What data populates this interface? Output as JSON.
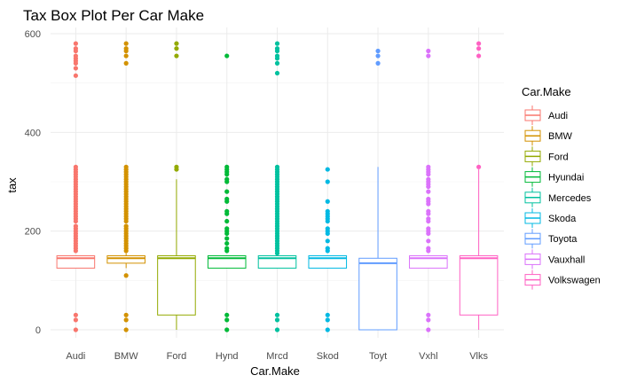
{
  "chart_data": {
    "type": "boxplot",
    "title": "Tax Box Plot Per Car Make",
    "xlabel": "Car.Make",
    "ylabel": "tax",
    "ylim": [
      -5,
      603
    ],
    "yticks": [
      0,
      200,
      400,
      600
    ],
    "grid": true,
    "legend": {
      "title": "Car.Make",
      "position": "right"
    },
    "categories": [
      {
        "tick": "Audi",
        "legend": "Audi",
        "color": "#F8766D",
        "box": {
          "min": 125,
          "q1": 125,
          "median": 145,
          "q3": 150,
          "max": 150
        },
        "outliers": [
          0,
          20,
          30,
          160,
          165,
          170,
          175,
          180,
          185,
          190,
          195,
          200,
          205,
          210,
          220,
          225,
          230,
          235,
          240,
          245,
          250,
          255,
          260,
          265,
          270,
          275,
          280,
          285,
          290,
          295,
          300,
          305,
          310,
          315,
          320,
          325,
          330,
          515,
          530,
          540,
          545,
          550,
          555,
          565,
          570,
          580
        ]
      },
      {
        "tick": "BMW",
        "legend": "BMW",
        "color": "#D39200",
        "box": {
          "min": 125,
          "q1": 135,
          "median": 145,
          "q3": 150,
          "max": 155
        },
        "outliers": [
          0,
          20,
          30,
          110,
          160,
          165,
          170,
          175,
          180,
          185,
          190,
          195,
          200,
          205,
          210,
          220,
          225,
          230,
          235,
          240,
          245,
          250,
          255,
          260,
          265,
          270,
          275,
          280,
          285,
          290,
          295,
          300,
          305,
          310,
          315,
          320,
          325,
          330,
          540,
          555,
          565,
          570,
          580
        ]
      },
      {
        "tick": "Ford",
        "legend": "Ford",
        "color": "#93AA00",
        "box": {
          "min": 0,
          "q1": 30,
          "median": 145,
          "q3": 150,
          "max": 305
        },
        "outliers": [
          325,
          330,
          555,
          570,
          580
        ]
      },
      {
        "tick": "Hynd",
        "legend": "Hyundai",
        "color": "#00BA38",
        "box": {
          "min": 125,
          "q1": 125,
          "median": 145,
          "q3": 150,
          "max": 150
        },
        "outliers": [
          0,
          20,
          30,
          160,
          165,
          175,
          185,
          195,
          200,
          205,
          220,
          235,
          240,
          260,
          265,
          280,
          300,
          305,
          315,
          320,
          325,
          330,
          555
        ]
      },
      {
        "tick": "Mrcd",
        "legend": "Mercedes",
        "color": "#00C19F",
        "box": {
          "min": 125,
          "q1": 125,
          "median": 145,
          "q3": 150,
          "max": 150
        },
        "outliers": [
          0,
          20,
          30,
          155,
          160,
          165,
          170,
          175,
          180,
          185,
          190,
          195,
          200,
          205,
          210,
          215,
          220,
          225,
          230,
          235,
          240,
          245,
          250,
          255,
          260,
          265,
          270,
          275,
          280,
          285,
          290,
          295,
          300,
          305,
          310,
          315,
          320,
          325,
          330,
          520,
          540,
          550,
          555,
          565,
          570,
          580
        ]
      },
      {
        "tick": "Skod",
        "legend": "Skoda",
        "color": "#00B9E3",
        "box": {
          "min": 125,
          "q1": 125,
          "median": 145,
          "q3": 150,
          "max": 150
        },
        "outliers": [
          0,
          20,
          30,
          160,
          165,
          180,
          195,
          200,
          205,
          220,
          225,
          230,
          235,
          240,
          260,
          300,
          325
        ]
      },
      {
        "tick": "Toyt",
        "legend": "Toyota",
        "color": "#619CFF",
        "box": {
          "min": 0,
          "q1": 0,
          "median": 135,
          "q3": 145,
          "max": 330
        },
        "outliers": [
          540,
          555,
          565
        ]
      },
      {
        "tick": "Vxhl",
        "legend": "Vauxhall",
        "color": "#DB72FB",
        "box": {
          "min": 125,
          "q1": 125,
          "median": 145,
          "q3": 150,
          "max": 150
        },
        "outliers": [
          0,
          20,
          30,
          160,
          165,
          180,
          195,
          200,
          205,
          220,
          225,
          235,
          240,
          255,
          260,
          265,
          280,
          290,
          295,
          300,
          305,
          315,
          320,
          325,
          330,
          555,
          565
        ]
      },
      {
        "tick": "Vlks",
        "legend": "Volkswagen",
        "color": "#FF61C3",
        "box": {
          "min": 0,
          "q1": 30,
          "median": 145,
          "q3": 150,
          "max": 325
        },
        "outliers": [
          330,
          555,
          570,
          580
        ]
      }
    ]
  }
}
